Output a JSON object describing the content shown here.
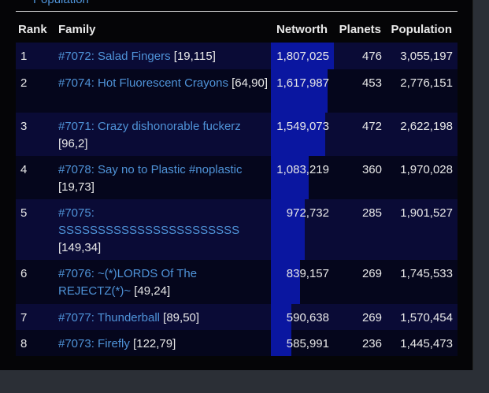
{
  "legend_label": "Population",
  "table": {
    "headers": [
      "Rank",
      "Family",
      "Networth",
      "Planets",
      "Population"
    ],
    "rows": [
      {
        "rank": 1,
        "family": "#7072: Salad Fingers",
        "coords": "[19,115]",
        "networth": 1807025,
        "networth_label": "1,807,025",
        "planets": 476,
        "population": "3,055,197"
      },
      {
        "rank": 2,
        "family": "#7074: Hot Fluorescent Crayons",
        "coords": "[64,90]",
        "networth": 1617987,
        "networth_label": "1,617,987",
        "planets": 453,
        "population": "2,776,151"
      },
      {
        "rank": 3,
        "family": "#7071: Crazy dishonorable fuckerz",
        "coords": "[96,2]",
        "networth": 1549073,
        "networth_label": "1,549,073",
        "planets": 472,
        "population": "2,622,198"
      },
      {
        "rank": 4,
        "family": "#7078: Say no to Plastic #noplastic",
        "coords": "[19,73]",
        "networth": 1083219,
        "networth_label": "1,083,219",
        "planets": 360,
        "population": "1,970,028"
      },
      {
        "rank": 5,
        "family": "#7075: SSSSSSSSSSSSSSSSSSSSSSS",
        "coords": "[149,34]",
        "networth": 972732,
        "networth_label": "972,732",
        "planets": 285,
        "population": "1,901,527"
      },
      {
        "rank": 6,
        "family": "#7076: ~(*)LORDS Of The REJECTZ(*)~",
        "coords": "[49,24]",
        "networth": 839157,
        "networth_label": "839,157",
        "planets": 269,
        "population": "1,745,533"
      },
      {
        "rank": 7,
        "family": "#7077: Thunderball",
        "coords": "[89,50]",
        "networth": 590638,
        "networth_label": "590,638",
        "planets": 269,
        "population": "1,570,454"
      },
      {
        "rank": 8,
        "family": "#7073: Firefly",
        "coords": "[122,79]",
        "networth": 585991,
        "networth_label": "585,991",
        "planets": 236,
        "population": "1,445,473"
      }
    ]
  }
}
